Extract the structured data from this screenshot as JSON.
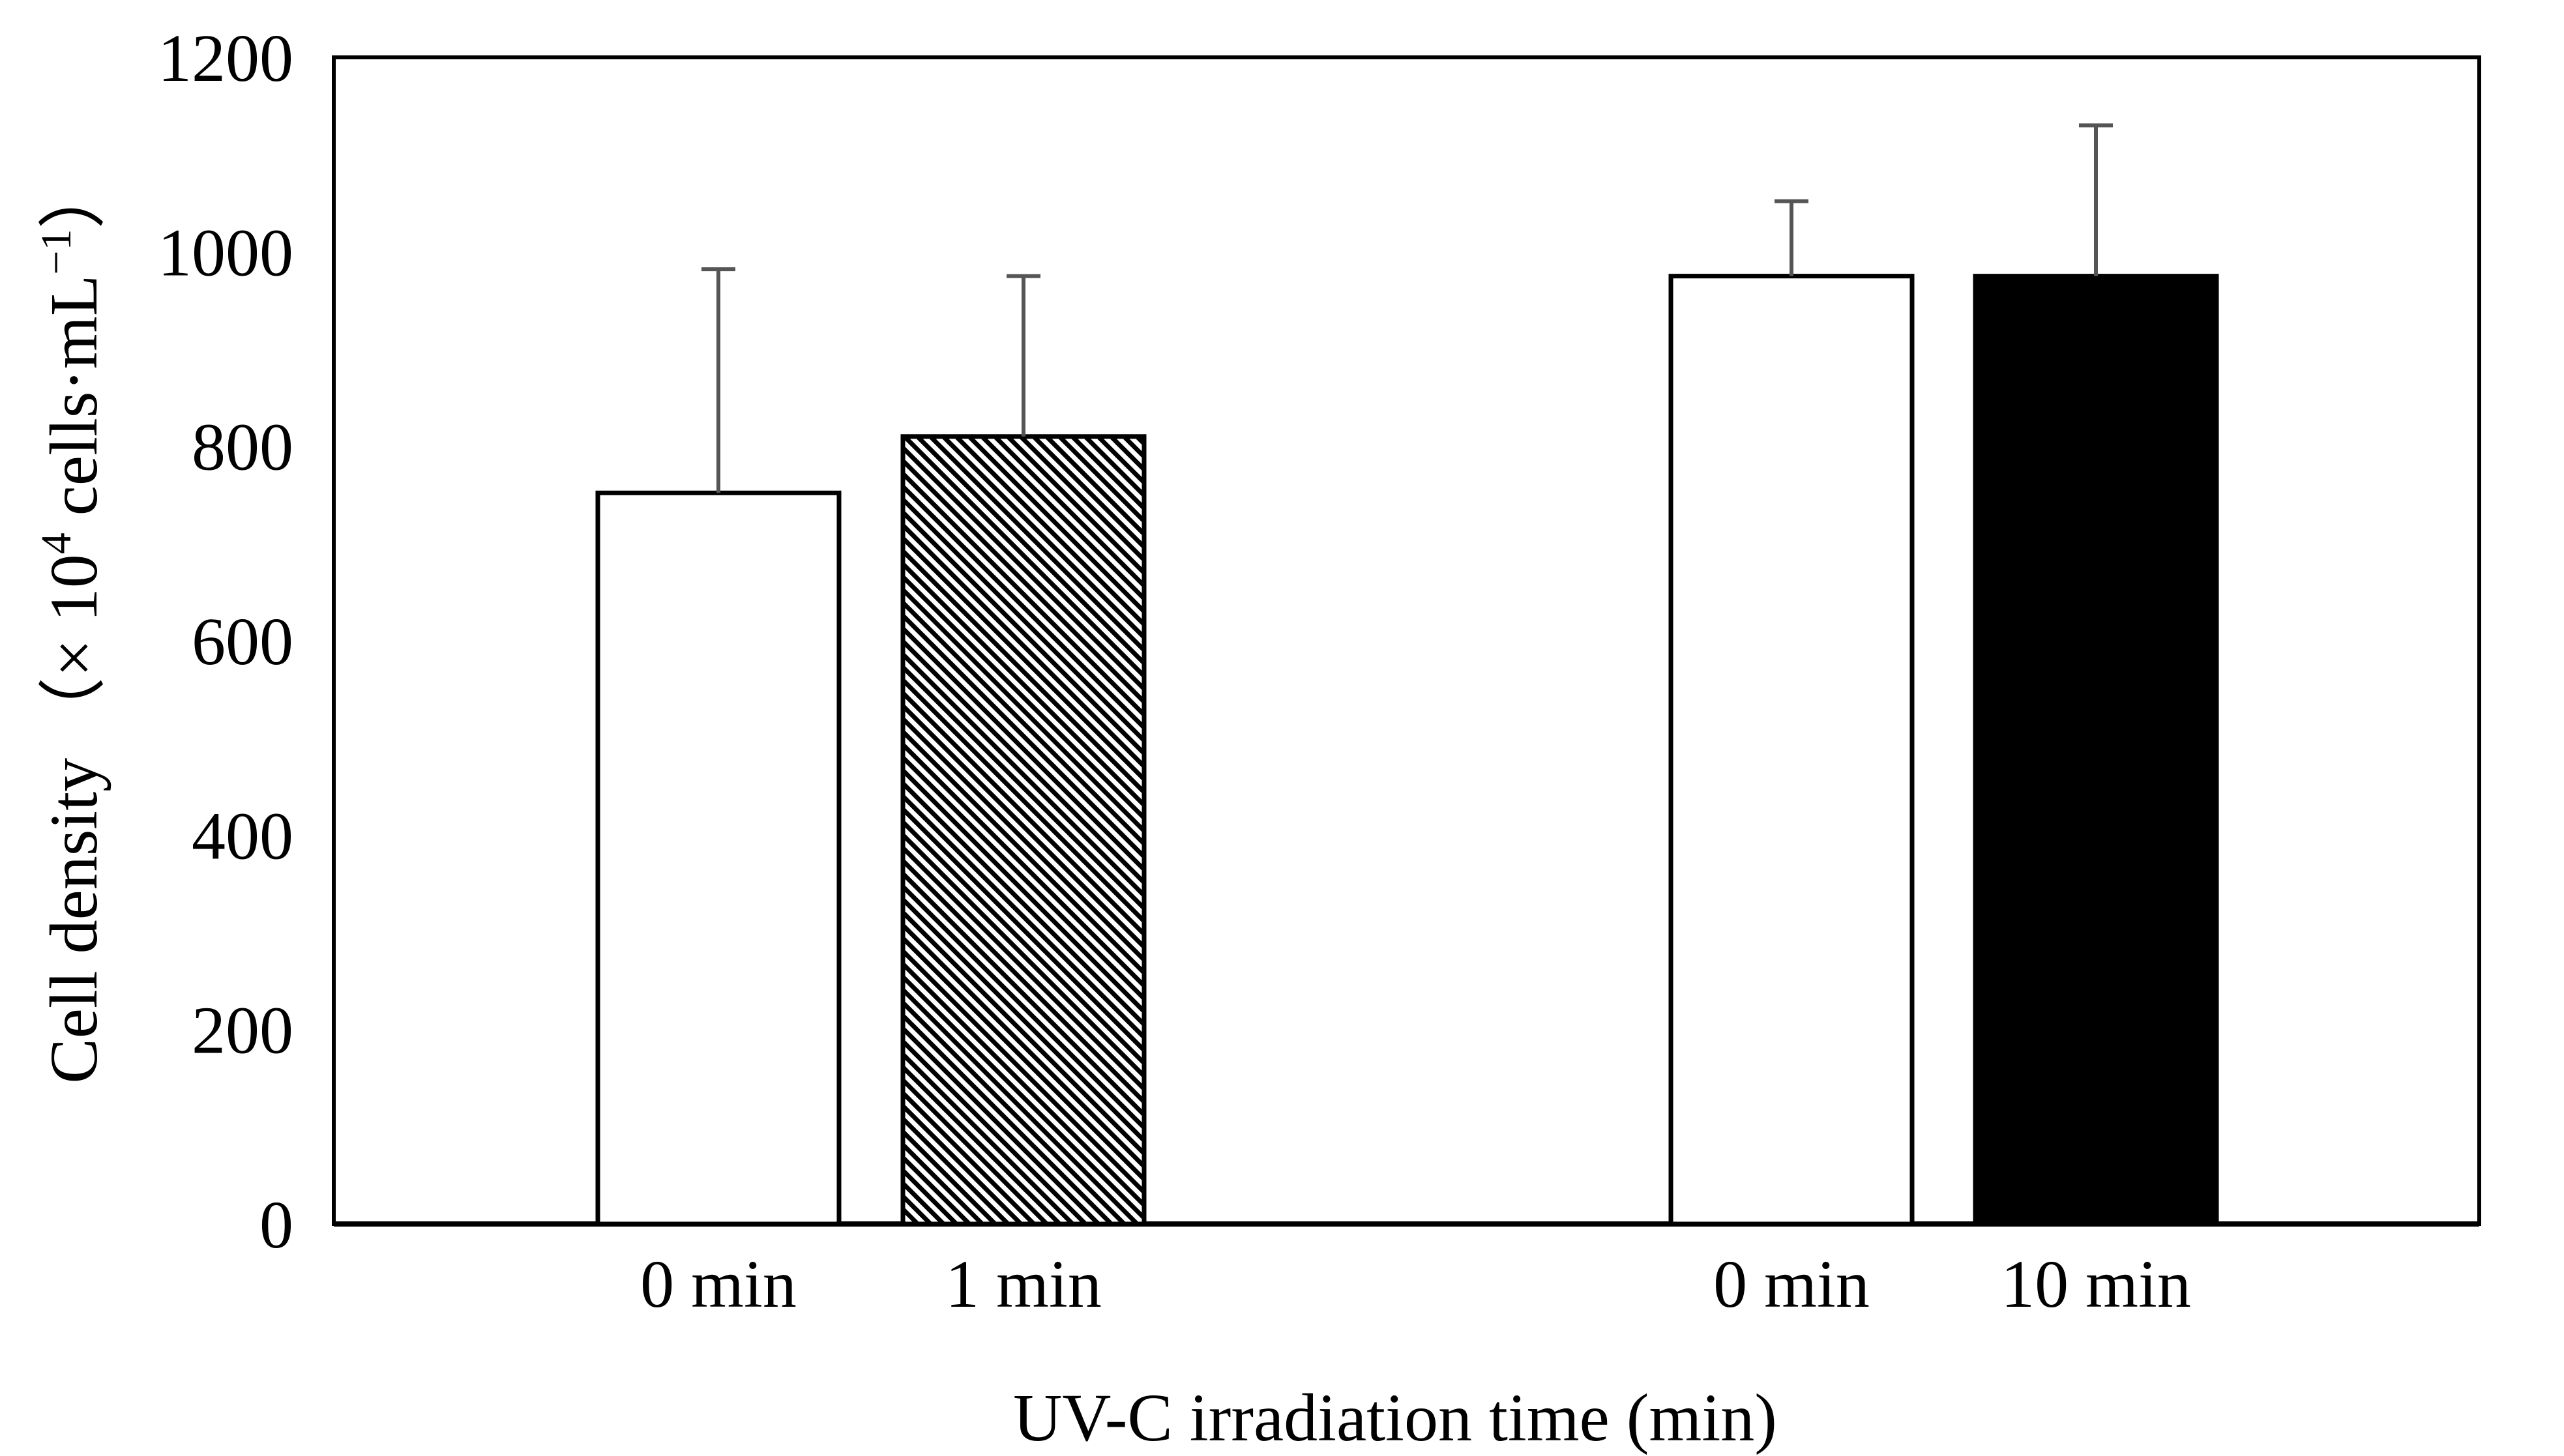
{
  "chart_data": {
    "type": "bar",
    "title": "",
    "xlabel": "UV-C irradiation time (min)",
    "ylabel": "Cell density",
    "ylabel_unit_prefix": "（× 10",
    "ylabel_unit_exp": "4",
    "ylabel_unit_mid": " cells·mL",
    "ylabel_unit_exp2": "−1",
    "ylabel_unit_suffix": "）",
    "ylim": [
      0,
      1200
    ],
    "yticks": [
      "0",
      "200",
      "400",
      "600",
      "800",
      "1000",
      "1200"
    ],
    "grid": false,
    "legend": "none",
    "groups": [
      {
        "bars": [
          {
            "category": "0 min",
            "value": 752,
            "error": 230,
            "fill": "white"
          },
          {
            "category": "1 min",
            "value": 810,
            "error": 165,
            "fill": "hatched"
          }
        ]
      },
      {
        "bars": [
          {
            "category": "0 min",
            "value": 975,
            "error": 77,
            "fill": "white"
          },
          {
            "category": "10 min",
            "value": 975,
            "error": 155,
            "fill": "black"
          }
        ]
      }
    ]
  },
  "colors": {
    "axis": "#000000",
    "bar_border": "#000000",
    "white_fill": "#ffffff",
    "black_fill": "#000000",
    "errorbar": "#555555"
  }
}
